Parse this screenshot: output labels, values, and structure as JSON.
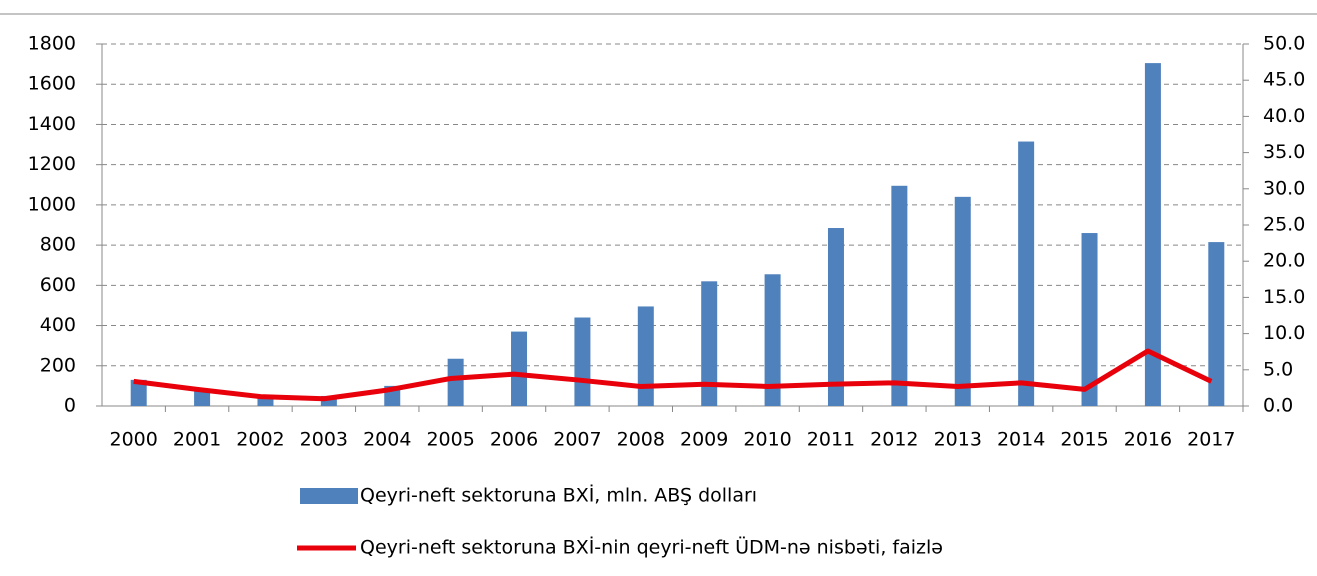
{
  "chart_data": {
    "type": "bar-line",
    "categories": [
      "2000",
      "2001",
      "2002",
      "2003",
      "2004",
      "2005",
      "2006",
      "2007",
      "2008",
      "2009",
      "2010",
      "2011",
      "2012",
      "2013",
      "2014",
      "2015",
      "2016",
      "2017"
    ],
    "series": [
      {
        "name": "Qeyri-neft sektoruna BXİ, mln. ABŞ dolları",
        "type": "bar",
        "color": "#4f81bd",
        "values": [
          130,
          80,
          50,
          50,
          100,
          235,
          370,
          440,
          495,
          620,
          655,
          885,
          1095,
          1040,
          1315,
          860,
          1705,
          815
        ]
      },
      {
        "name": "Qeyri-neft sektoruna BXİ-nin qeyri-neft ÜDM-nə nisbəti, faizlə",
        "type": "line",
        "axis": "y2",
        "color": "#e8000b",
        "values": [
          3.4,
          2.3,
          1.3,
          1.0,
          2.2,
          3.8,
          4.4,
          3.6,
          2.7,
          3.0,
          2.7,
          3.0,
          3.2,
          2.7,
          3.2,
          2.3,
          7.6,
          3.4
        ]
      }
    ],
    "ylim": [
      0,
      1800
    ],
    "yticks": [
      0,
      200,
      400,
      600,
      800,
      1000,
      1200,
      1400,
      1600,
      1800
    ],
    "y2lim": [
      0,
      50
    ],
    "y2ticks": [
      {
        "value": 0,
        "label": "0.0"
      },
      {
        "value": 5,
        "label": "5.0"
      },
      {
        "value": 10,
        "label": "10.0"
      },
      {
        "value": 15,
        "label": "15.0"
      },
      {
        "value": 20,
        "label": "20.0"
      },
      {
        "value": 25,
        "label": "25.0"
      },
      {
        "value": 30,
        "label": "30.0"
      },
      {
        "value": 35,
        "label": "35.0"
      },
      {
        "value": 40,
        "label": "40.0"
      },
      {
        "value": 45,
        "label": "45.0"
      },
      {
        "value": 50,
        "label": "50.0"
      }
    ],
    "grid": true,
    "legend": "bottom"
  }
}
